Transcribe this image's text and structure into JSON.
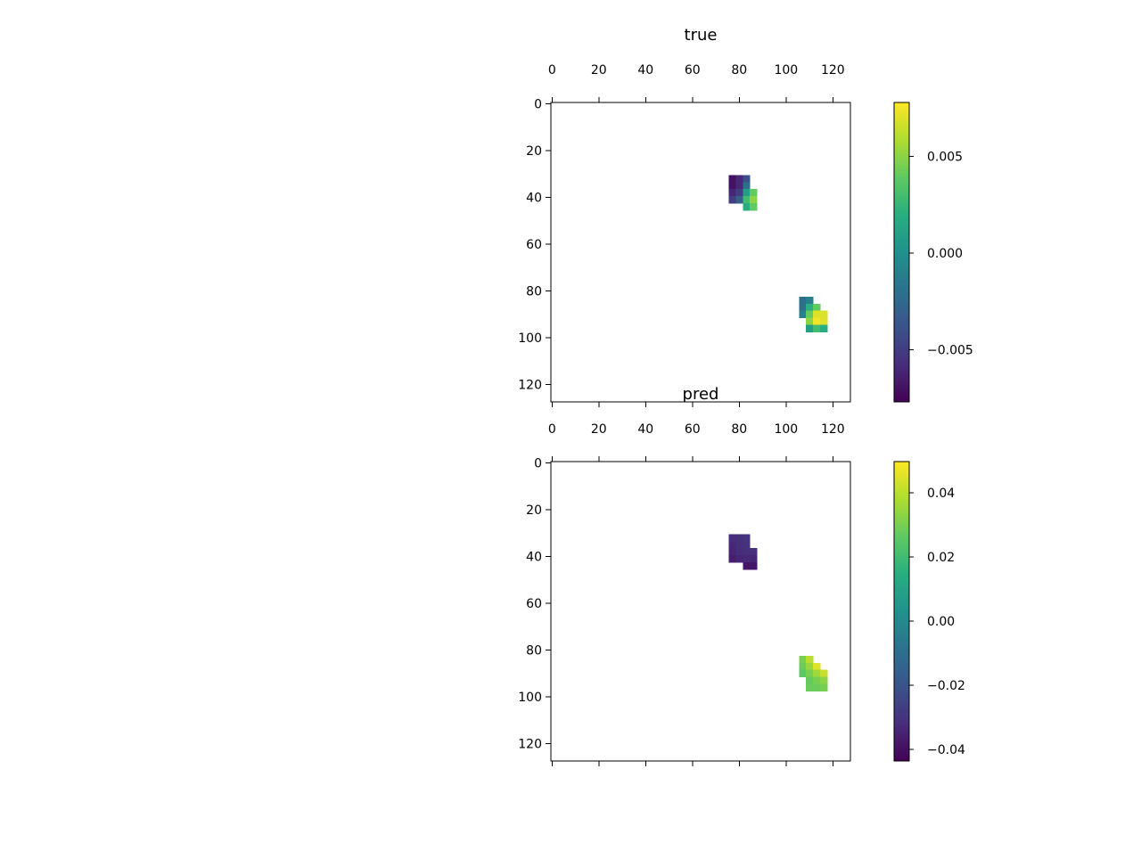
{
  "chart_data": [
    {
      "type": "image",
      "title": "true",
      "cmap": "viridis",
      "xlim": [
        -0.5,
        127.5
      ],
      "ylim": [
        127.5,
        -0.5
      ],
      "xticks": [
        0,
        20,
        40,
        60,
        80,
        100,
        120
      ],
      "yticks": [
        0,
        20,
        40,
        60,
        80,
        100,
        120
      ],
      "clim": [
        -0.0077,
        0.0078
      ],
      "cticks": [
        {
          "value": -0.005,
          "label": "−0.005"
        },
        {
          "value": 0,
          "label": "0.000"
        },
        0.005
      ],
      "cells": [
        [
          77,
          32,
          -0.007
        ],
        [
          80,
          32,
          -0.006
        ],
        [
          83,
          32,
          -0.004
        ],
        [
          77,
          35,
          -0.007
        ],
        [
          80,
          35,
          -0.006
        ],
        [
          83,
          35,
          -0.002
        ],
        [
          77,
          38,
          -0.006
        ],
        [
          80,
          38,
          -0.005
        ],
        [
          83,
          38,
          0.001
        ],
        [
          86,
          38,
          0.004
        ],
        [
          77,
          41,
          -0.005
        ],
        [
          80,
          41,
          -0.003
        ],
        [
          83,
          41,
          0.003
        ],
        [
          86,
          41,
          0.005
        ],
        [
          83,
          44,
          0.002
        ],
        [
          86,
          44,
          0.004
        ],
        [
          107,
          84,
          -0.002
        ],
        [
          110,
          84,
          -0.001
        ],
        [
          107,
          87,
          -0.002
        ],
        [
          110,
          87,
          0.002
        ],
        [
          113,
          87,
          0.004
        ],
        [
          107,
          90,
          -0.001
        ],
        [
          110,
          90,
          0.004
        ],
        [
          113,
          90,
          0.007
        ],
        [
          116,
          90,
          0.007
        ],
        [
          110,
          93,
          0.005
        ],
        [
          113,
          93,
          0.0075
        ],
        [
          116,
          93,
          0.007
        ],
        [
          110,
          96,
          0.001
        ],
        [
          113,
          96,
          0.003
        ],
        [
          116,
          96,
          0.002
        ]
      ]
    },
    {
      "type": "image",
      "title": "pred",
      "cmap": "viridis",
      "xlim": [
        -0.5,
        127.5
      ],
      "ylim": [
        127.5,
        -0.5
      ],
      "xticks": [
        0,
        20,
        40,
        60,
        80,
        100,
        120
      ],
      "yticks": [
        0,
        20,
        40,
        60,
        80,
        100,
        120
      ],
      "clim": [
        -0.0436,
        0.0497
      ],
      "cticks": [
        {
          "value": -0.04,
          "label": "−0.04"
        },
        {
          "value": -0.02,
          "label": "−0.02"
        },
        {
          "value": 0,
          "label": "0.00"
        },
        0.02,
        0.04
      ],
      "cells": [
        [
          77,
          32,
          -0.032
        ],
        [
          80,
          32,
          -0.031
        ],
        [
          83,
          32,
          -0.03
        ],
        [
          77,
          35,
          -0.033
        ],
        [
          80,
          35,
          -0.031
        ],
        [
          83,
          35,
          -0.03
        ],
        [
          77,
          38,
          -0.034
        ],
        [
          80,
          38,
          -0.032
        ],
        [
          83,
          38,
          -0.031
        ],
        [
          86,
          38,
          -0.031
        ],
        [
          77,
          41,
          -0.036
        ],
        [
          80,
          41,
          -0.034
        ],
        [
          83,
          41,
          -0.033
        ],
        [
          86,
          41,
          -0.034
        ],
        [
          83,
          44,
          -0.038
        ],
        [
          86,
          44,
          -0.038
        ],
        [
          107,
          84,
          0.03
        ],
        [
          110,
          84,
          0.04
        ],
        [
          107,
          87,
          0.028
        ],
        [
          110,
          87,
          0.035
        ],
        [
          113,
          87,
          0.045
        ],
        [
          107,
          90,
          0.026
        ],
        [
          110,
          90,
          0.03
        ],
        [
          113,
          90,
          0.036
        ],
        [
          116,
          90,
          0.042
        ],
        [
          110,
          93,
          0.027
        ],
        [
          113,
          93,
          0.03
        ],
        [
          116,
          93,
          0.033
        ],
        [
          110,
          96,
          0.028
        ],
        [
          113,
          96,
          0.028
        ],
        [
          116,
          96,
          0.03
        ]
      ]
    }
  ]
}
